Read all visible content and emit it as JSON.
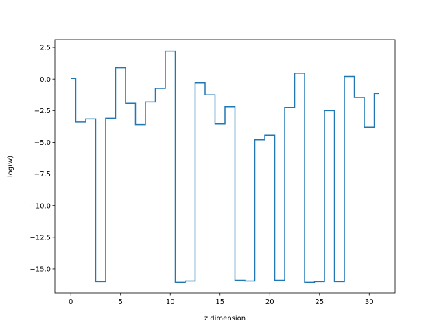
{
  "chart_data": {
    "type": "line",
    "drawstyle": "steps-mid",
    "title": "",
    "xlabel": "z dimension",
    "ylabel": "log(w)",
    "xlim": [
      -1.6,
      32.6
    ],
    "ylim": [
      -16.9,
      3.1
    ],
    "xticks": [
      0,
      5,
      10,
      15,
      20,
      25,
      30
    ],
    "xtick_labels": [
      "0",
      "5",
      "10",
      "15",
      "20",
      "25",
      "30"
    ],
    "yticks": [
      2.5,
      0.0,
      -2.5,
      -5.0,
      -7.5,
      -10.0,
      -12.5,
      -15.0
    ],
    "ytick_labels": [
      "2.5",
      "0.0",
      "−2.5",
      "−5.0",
      "−7.5",
      "−10.0",
      "−12.5",
      "−15.0"
    ],
    "grid": false,
    "legend": "none",
    "series": [
      {
        "color": "#1f77b4",
        "x": [
          0,
          1,
          2,
          3,
          4,
          5,
          6,
          7,
          8,
          9,
          10,
          11,
          12,
          13,
          14,
          15,
          16,
          17,
          18,
          19,
          20,
          21,
          22,
          23,
          24,
          25,
          26,
          27,
          28,
          29,
          30,
          31
        ],
        "y": [
          0.05,
          -3.4,
          -3.15,
          -16.0,
          -3.1,
          0.9,
          -1.9,
          -3.6,
          -1.8,
          -0.75,
          2.2,
          -16.05,
          -15.95,
          -0.3,
          -1.25,
          -3.55,
          -2.2,
          -15.9,
          -15.95,
          -4.8,
          -4.45,
          -15.9,
          -2.25,
          0.45,
          -16.05,
          -16.0,
          -2.5,
          -16.0,
          0.2,
          -1.45,
          -3.8,
          -1.15
        ]
      }
    ]
  }
}
